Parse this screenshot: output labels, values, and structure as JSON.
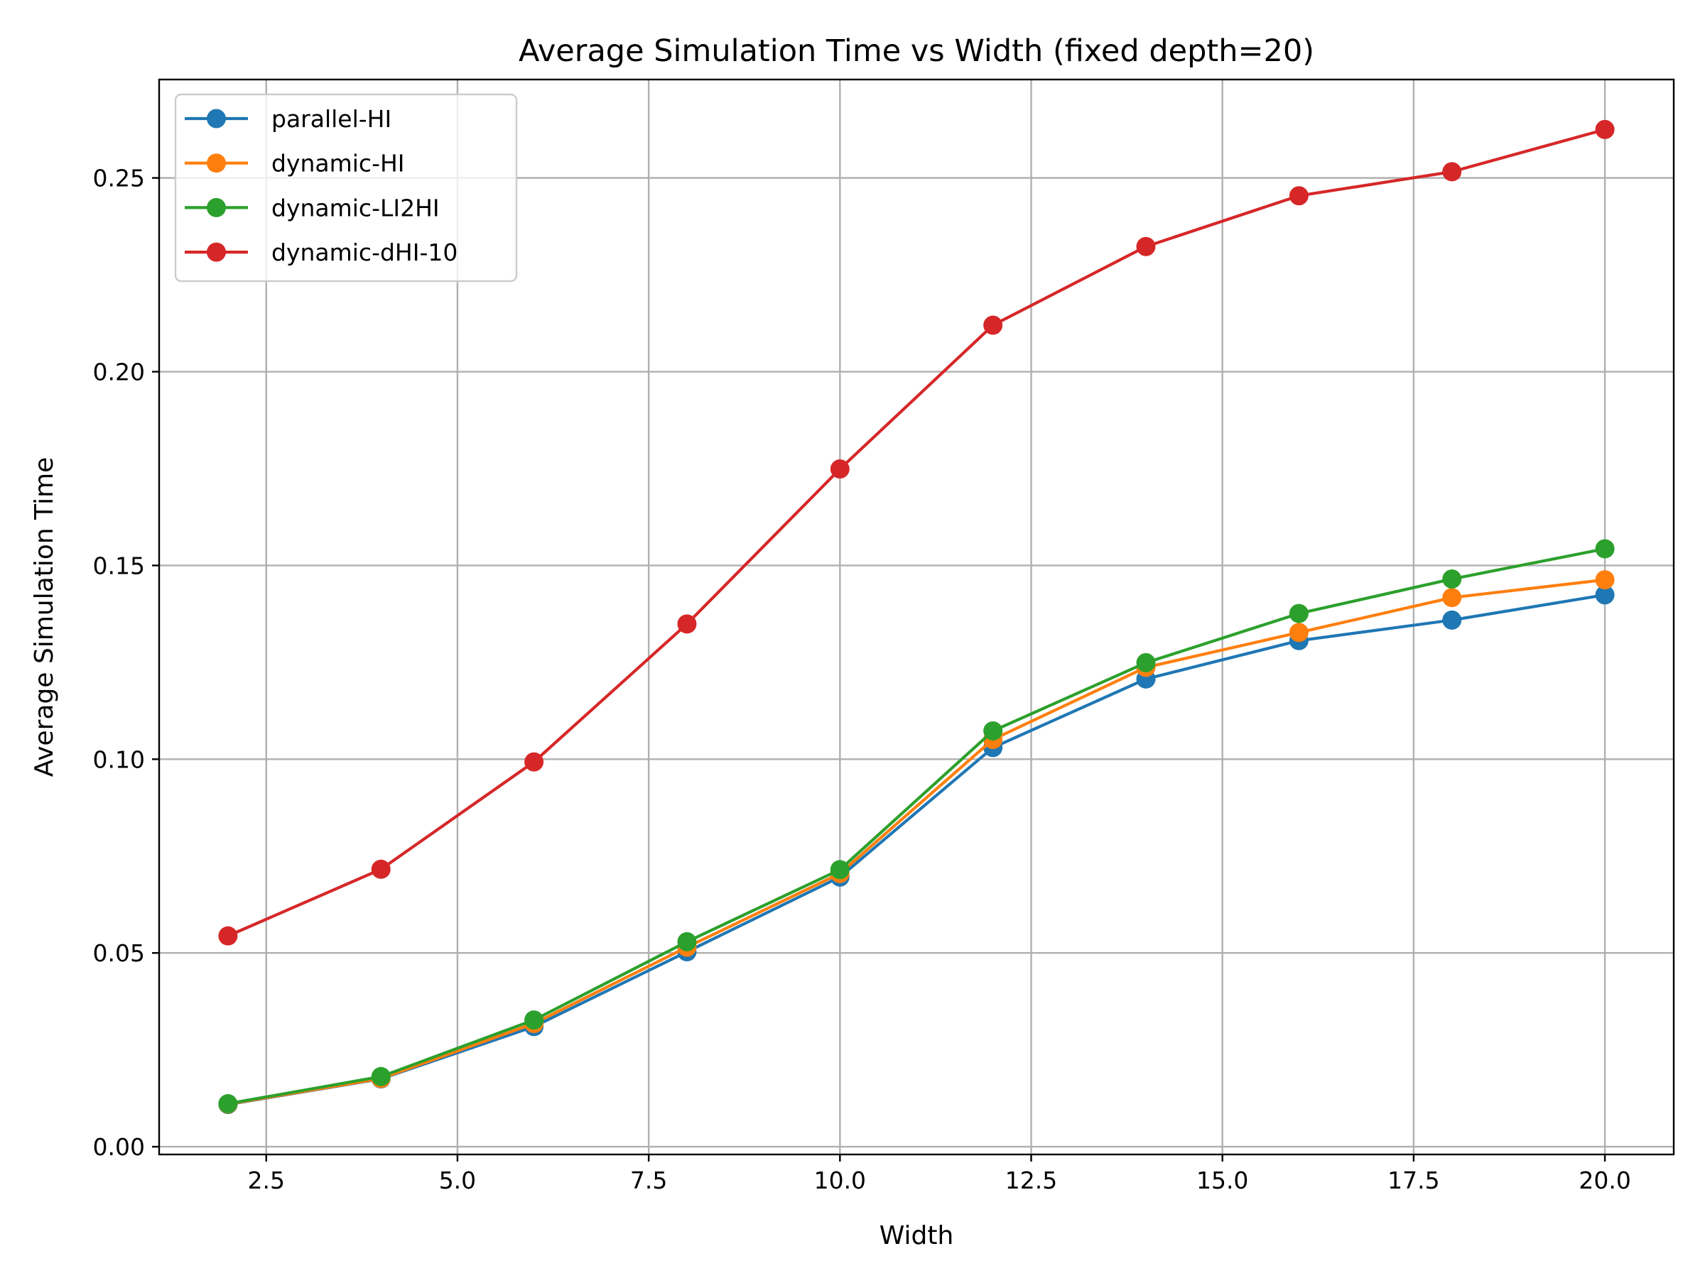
{
  "chart_data": {
    "type": "line",
    "title": "Average Simulation Time vs Width (fixed depth=20)",
    "xlabel": "Width",
    "ylabel": "Average Simulation Time",
    "xlim": [
      1.1,
      20.9
    ],
    "ylim": [
      -0.002,
      0.2754
    ],
    "xticks": [
      2.5,
      5.0,
      7.5,
      10.0,
      12.5,
      15.0,
      17.5,
      20.0
    ],
    "xtick_labels": [
      "2.5",
      "5.0",
      "7.5",
      "10.0",
      "12.5",
      "15.0",
      "17.5",
      "20.0"
    ],
    "yticks": [
      0.0,
      0.05,
      0.1,
      0.15,
      0.2,
      0.25
    ],
    "ytick_labels": [
      "0.00",
      "0.05",
      "0.10",
      "0.15",
      "0.20",
      "0.25"
    ],
    "grid": true,
    "legend_position": "top-left",
    "x": [
      2,
      4,
      6,
      8,
      10,
      12,
      14,
      16,
      18,
      20
    ],
    "series": [
      {
        "name": "parallel-HI",
        "color": "#1f77b4",
        "marker": "circle",
        "values": [
          0.0109,
          0.0175,
          0.031,
          0.0503,
          0.0696,
          0.103,
          0.1207,
          0.1306,
          0.1359,
          0.1424
        ]
      },
      {
        "name": "dynamic-HI",
        "color": "#ff7f0e",
        "marker": "circle",
        "values": [
          0.011,
          0.0176,
          0.0318,
          0.0515,
          0.0705,
          0.1051,
          0.1237,
          0.1327,
          0.1417,
          0.1463
        ]
      },
      {
        "name": "dynamic-LI2HI",
        "color": "#2ca02c",
        "marker": "circle",
        "values": [
          0.0111,
          0.0181,
          0.0327,
          0.0529,
          0.0715,
          0.1073,
          0.1249,
          0.1376,
          0.1465,
          0.1543
        ]
      },
      {
        "name": "dynamic-dHI-10",
        "color": "#d62728",
        "marker": "circle",
        "values": [
          0.0544,
          0.0716,
          0.0993,
          0.1349,
          0.1749,
          0.212,
          0.2323,
          0.2454,
          0.2516,
          0.2625
        ]
      }
    ]
  }
}
